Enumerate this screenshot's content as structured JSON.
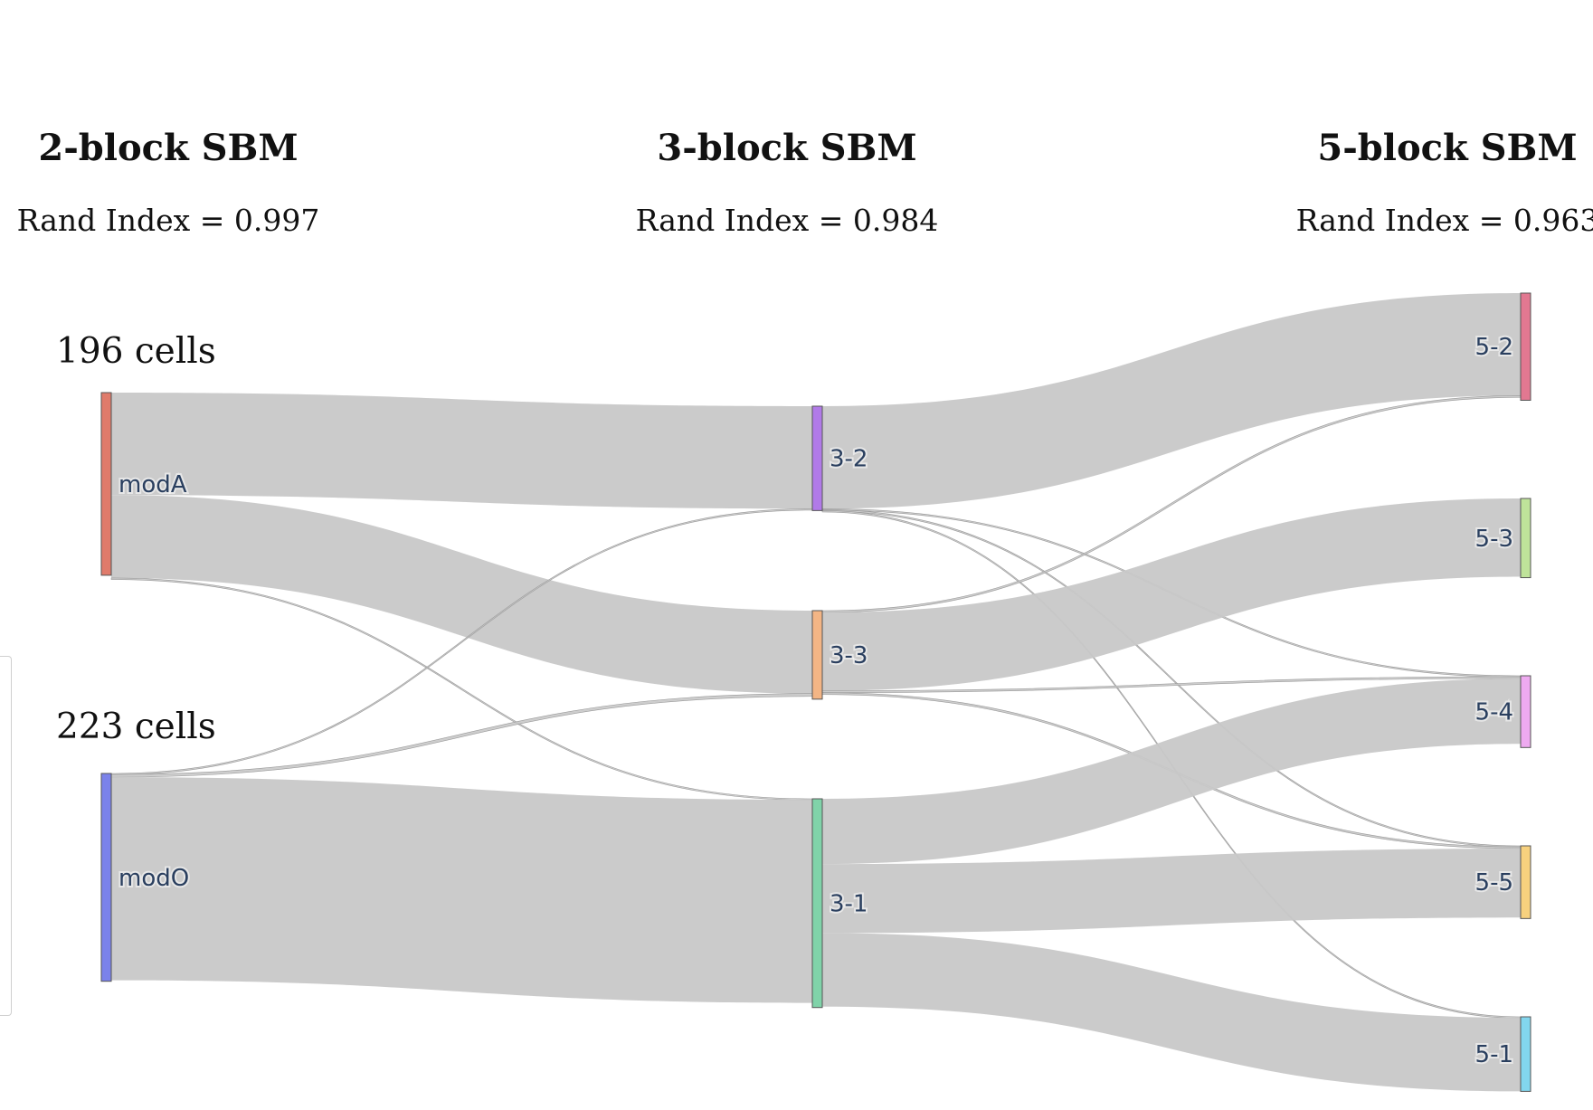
{
  "columns": [
    {
      "title": "2-block SBM",
      "subtitle": "Rand Index = 0.997"
    },
    {
      "title": "3-block SBM",
      "subtitle": "Rand Index = 0.984"
    },
    {
      "title": "5-block SBM",
      "subtitle": "Rand Index = 0.963"
    }
  ],
  "counts": [
    {
      "node": "modA",
      "label": "196 cells"
    },
    {
      "node": "modO",
      "label": "223 cells"
    }
  ],
  "chart_data": {
    "type": "sankey",
    "link_color": "#c8c8c8",
    "nodes": [
      {
        "id": "modA",
        "label": "modA",
        "column": 0,
        "color": "#e07b6b",
        "value": 196
      },
      {
        "id": "modO",
        "label": "modO",
        "column": 0,
        "color": "#7b82ea",
        "value": 223
      },
      {
        "id": "3-2",
        "label": "3-2",
        "column": 1,
        "color": "#b17ae8",
        "value": 112
      },
      {
        "id": "3-3",
        "label": "3-3",
        "column": 1,
        "color": "#f3b585",
        "value": 95
      },
      {
        "id": "3-1",
        "label": "3-1",
        "column": 1,
        "color": "#80d3a9",
        "value": 224
      },
      {
        "id": "5-2",
        "label": "5-2",
        "column": 2,
        "color": "#e27891",
        "value": 115
      },
      {
        "id": "5-3",
        "label": "5-3",
        "column": 2,
        "color": "#bfe39a",
        "value": 85
      },
      {
        "id": "5-4",
        "label": "5-4",
        "column": 2,
        "color": "#eeaaf0",
        "value": 77
      },
      {
        "id": "5-5",
        "label": "5-5",
        "column": 2,
        "color": "#f7d17e",
        "value": 78
      },
      {
        "id": "5-1",
        "label": "5-1",
        "column": 2,
        "color": "#82d6ee",
        "value": 80
      }
    ],
    "links": [
      {
        "source": "modA",
        "target": "3-2",
        "value": 110
      },
      {
        "source": "modA",
        "target": "3-3",
        "value": 89
      },
      {
        "source": "modA",
        "target": "3-1",
        "value": 1
      },
      {
        "source": "modO",
        "target": "3-2",
        "value": 1
      },
      {
        "source": "modO",
        "target": "3-3",
        "value": 3
      },
      {
        "source": "modO",
        "target": "3-1",
        "value": 218
      },
      {
        "source": "3-2",
        "target": "5-2",
        "value": 110
      },
      {
        "source": "3-2",
        "target": "5-4",
        "value": 1
      },
      {
        "source": "3-2",
        "target": "5-5",
        "value": 1
      },
      {
        "source": "3-2",
        "target": "5-1",
        "value": 1
      },
      {
        "source": "3-3",
        "target": "5-2",
        "value": 2
      },
      {
        "source": "3-3",
        "target": "5-3",
        "value": 84
      },
      {
        "source": "3-3",
        "target": "5-4",
        "value": 2
      },
      {
        "source": "3-3",
        "target": "5-5",
        "value": 2
      },
      {
        "source": "3-1",
        "target": "5-4",
        "value": 70
      },
      {
        "source": "3-1",
        "target": "5-5",
        "value": 74
      },
      {
        "source": "3-1",
        "target": "5-1",
        "value": 79
      }
    ]
  }
}
